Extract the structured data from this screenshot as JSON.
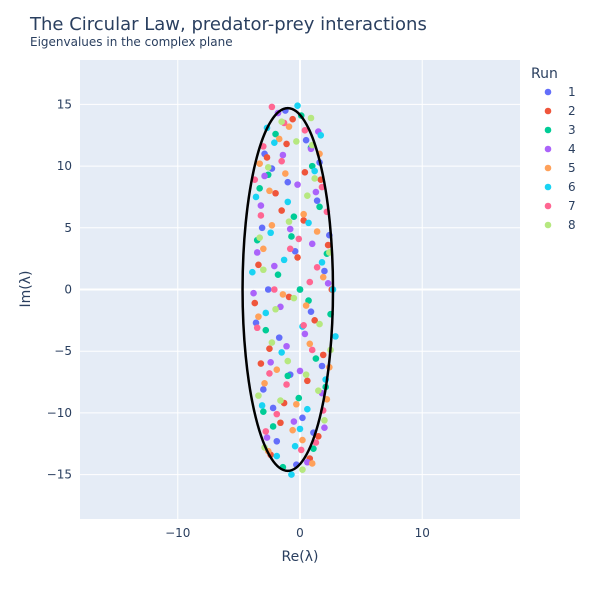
{
  "chart_data": {
    "type": "scatter",
    "title": "The Circular Law, predator-prey interactions",
    "subtitle": "Eigenvalues in the complex plane",
    "xlabel": "Re(λ)",
    "ylabel": "Im(λ)",
    "xlim": [
      -18,
      18
    ],
    "ylim": [
      -18.6,
      18.6
    ],
    "x_ticks": [
      -10,
      0,
      10
    ],
    "x_tick_labels": [
      "−10",
      "0",
      "10"
    ],
    "y_ticks": [
      -15,
      -10,
      -5,
      0,
      5,
      10,
      15
    ],
    "y_tick_labels": [
      "−15",
      "−10",
      "−5",
      "0",
      "5",
      "10",
      "15"
    ],
    "grid": true,
    "legend": {
      "title": "Run",
      "placement": "top-right"
    },
    "plot_bgcolor": "#E5ECF6",
    "ellipse": {
      "center": [
        -1,
        0
      ],
      "semi_axis_re": 3.7,
      "semi_axis_im": 14.7,
      "color": "#000000"
    },
    "series": [
      {
        "name": "1",
        "color": "#636EFA",
        "points": [
          [
            -1.2,
            14.5
          ],
          [
            0.5,
            12.1
          ],
          [
            -2.3,
            9.8
          ],
          [
            1.4,
            7.2
          ],
          [
            -3.1,
            5.0
          ],
          [
            -0.4,
            3.1
          ],
          [
            2.0,
            1.5
          ],
          [
            -2.6,
            0.0
          ],
          [
            0.9,
            -1.8
          ],
          [
            -1.7,
            -3.9
          ],
          [
            1.8,
            -6.2
          ],
          [
            -3.0,
            -8.1
          ],
          [
            0.2,
            -10.4
          ],
          [
            -1.9,
            -12.3
          ],
          [
            -0.3,
            -14.2
          ],
          [
            -2.9,
            11.0
          ],
          [
            1.1,
            -11.6
          ],
          [
            -3.6,
            -2.7
          ],
          [
            2.4,
            4.4
          ],
          [
            -1.0,
            8.7
          ],
          [
            0.0,
            0.0
          ],
          [
            -0.8,
            -6.9
          ],
          [
            1.6,
            10.3
          ],
          [
            -2.2,
            -9.6
          ]
        ]
      },
      {
        "name": "2",
        "color": "#EF553B",
        "points": [
          [
            -0.6,
            13.8
          ],
          [
            -2.7,
            10.7
          ],
          [
            1.7,
            8.9
          ],
          [
            -1.5,
            6.4
          ],
          [
            2.3,
            3.6
          ],
          [
            -3.4,
            2.0
          ],
          [
            -0.9,
            -0.6
          ],
          [
            1.2,
            -2.5
          ],
          [
            -2.5,
            -4.8
          ],
          [
            0.6,
            -7.4
          ],
          [
            -1.3,
            -9.2
          ],
          [
            1.5,
            -11.9
          ],
          [
            -2.4,
            -13.4
          ],
          [
            0.3,
            5.6
          ],
          [
            -3.7,
            -1.1
          ],
          [
            2.6,
            0.0
          ],
          [
            -1.1,
            11.8
          ],
          [
            0.8,
            -13.7
          ],
          [
            -2.0,
            7.8
          ],
          [
            1.9,
            -5.3
          ],
          [
            -0.2,
            2.6
          ],
          [
            -3.2,
            -6.0
          ],
          [
            0.4,
            9.5
          ],
          [
            -1.6,
            -10.8
          ]
        ]
      },
      {
        "name": "3",
        "color": "#00CC96",
        "points": [
          [
            0.1,
            14.1
          ],
          [
            -2.0,
            12.6
          ],
          [
            1.0,
            10.0
          ],
          [
            -3.3,
            8.2
          ],
          [
            -0.5,
            5.9
          ],
          [
            2.2,
            2.9
          ],
          [
            -1.8,
            1.2
          ],
          [
            0.7,
            -0.9
          ],
          [
            -2.8,
            -3.3
          ],
          [
            1.3,
            -5.6
          ],
          [
            -0.1,
            -8.8
          ],
          [
            -2.2,
            -11.1
          ],
          [
            1.1,
            -12.9
          ],
          [
            -1.4,
            -14.4
          ],
          [
            2.5,
            -2.0
          ],
          [
            -3.5,
            4.0
          ],
          [
            0.0,
            0.0
          ],
          [
            -1.0,
            -7.0
          ],
          [
            1.6,
            6.7
          ],
          [
            -2.6,
            9.3
          ],
          [
            0.9,
            11.5
          ],
          [
            -3.0,
            -9.9
          ],
          [
            2.1,
            -7.9
          ],
          [
            -0.7,
            4.3
          ]
        ]
      },
      {
        "name": "4",
        "color": "#AB63FA",
        "points": [
          [
            -1.8,
            14.3
          ],
          [
            0.9,
            11.4
          ],
          [
            -2.9,
            9.2
          ],
          [
            1.3,
            7.9
          ],
          [
            -0.8,
            4.9
          ],
          [
            -3.5,
            3.0
          ],
          [
            2.3,
            0.5
          ],
          [
            -1.6,
            -1.4
          ],
          [
            0.4,
            -3.6
          ],
          [
            -2.4,
            -5.9
          ],
          [
            1.8,
            -8.4
          ],
          [
            -0.5,
            -10.7
          ],
          [
            -2.7,
            -12.0
          ],
          [
            0.6,
            -14.0
          ],
          [
            -3.2,
            6.8
          ],
          [
            1.5,
            12.8
          ],
          [
            -1.1,
            -4.6
          ],
          [
            2.0,
            -11.2
          ],
          [
            -0.2,
            8.5
          ],
          [
            -3.8,
            -0.3
          ],
          [
            0.0,
            -6.6
          ],
          [
            -2.1,
            1.9
          ],
          [
            1.0,
            3.7
          ],
          [
            -1.4,
            10.9
          ]
        ]
      },
      {
        "name": "5",
        "color": "#FFA15A",
        "points": [
          [
            -0.9,
            13.2
          ],
          [
            1.6,
            11.0
          ],
          [
            -2.5,
            8.0
          ],
          [
            0.3,
            6.1
          ],
          [
            -3.0,
            3.3
          ],
          [
            1.9,
            1.0
          ],
          [
            -1.4,
            -0.4
          ],
          [
            -3.4,
            -2.2
          ],
          [
            0.8,
            -4.4
          ],
          [
            -1.9,
            -6.5
          ],
          [
            2.2,
            -8.9
          ],
          [
            -0.6,
            -11.4
          ],
          [
            -2.6,
            -13.1
          ],
          [
            1.0,
            -14.1
          ],
          [
            -1.2,
            9.4
          ],
          [
            0.5,
            -1.3
          ],
          [
            -3.3,
            10.2
          ],
          [
            1.4,
            4.7
          ],
          [
            -0.3,
            -9.3
          ],
          [
            -2.3,
            5.2
          ],
          [
            2.4,
            -6.3
          ],
          [
            -1.7,
            12.2
          ],
          [
            0.2,
            -12.2
          ],
          [
            -2.9,
            -7.6
          ]
        ]
      },
      {
        "name": "6",
        "color": "#19D3F3",
        "points": [
          [
            -0.2,
            14.9
          ],
          [
            -2.1,
            11.9
          ],
          [
            1.2,
            9.6
          ],
          [
            -3.6,
            7.5
          ],
          [
            0.7,
            5.4
          ],
          [
            -1.3,
            2.4
          ],
          [
            2.7,
            0.0
          ],
          [
            -2.8,
            -1.9
          ],
          [
            0.2,
            -3.0
          ],
          [
            -1.5,
            -5.1
          ],
          [
            2.1,
            -7.3
          ],
          [
            -3.1,
            -9.4
          ],
          [
            0.0,
            -11.3
          ],
          [
            -1.9,
            -13.5
          ],
          [
            -0.7,
            -15.0
          ],
          [
            1.8,
            2.2
          ],
          [
            -3.9,
            1.4
          ],
          [
            1.7,
            12.5
          ],
          [
            -2.4,
            4.6
          ],
          [
            0.6,
            -9.7
          ],
          [
            -1.0,
            7.1
          ],
          [
            2.9,
            -3.8
          ],
          [
            -0.4,
            -12.7
          ],
          [
            -2.7,
            13.1
          ]
        ]
      },
      {
        "name": "7",
        "color": "#FF6692",
        "points": [
          [
            -2.3,
            14.8
          ],
          [
            0.4,
            12.9
          ],
          [
            -1.5,
            10.4
          ],
          [
            1.8,
            8.3
          ],
          [
            -3.2,
            6.0
          ],
          [
            -0.1,
            4.1
          ],
          [
            1.4,
            1.8
          ],
          [
            -2.1,
            0.0
          ],
          [
            -3.5,
            -3.1
          ],
          [
            1.0,
            -4.9
          ],
          [
            -1.1,
            -7.7
          ],
          [
            1.9,
            -9.8
          ],
          [
            -2.8,
            -11.5
          ],
          [
            0.1,
            -13.0
          ],
          [
            -1.3,
            13.5
          ],
          [
            -3.7,
            8.9
          ],
          [
            2.2,
            6.3
          ],
          [
            0.3,
            -2.9
          ],
          [
            -2.5,
            -6.8
          ],
          [
            1.3,
            -12.4
          ],
          [
            -0.8,
            3.3
          ],
          [
            -1.9,
            -10.1
          ],
          [
            0.8,
            0.6
          ],
          [
            -3.0,
            11.6
          ]
        ]
      },
      {
        "name": "8",
        "color": "#B6E880",
        "points": [
          [
            -1.5,
            13.6
          ],
          [
            1.0,
            11.7
          ],
          [
            -2.6,
            9.9
          ],
          [
            0.6,
            7.6
          ],
          [
            -0.9,
            5.5
          ],
          [
            2.4,
            3.0
          ],
          [
            -3.0,
            1.6
          ],
          [
            -0.5,
            -0.7
          ],
          [
            1.6,
            -2.8
          ],
          [
            -2.3,
            -4.3
          ],
          [
            0.5,
            -6.9
          ],
          [
            -1.6,
            -9.0
          ],
          [
            2.0,
            -10.6
          ],
          [
            -2.9,
            -12.8
          ],
          [
            0.2,
            -14.6
          ],
          [
            -3.3,
            4.2
          ],
          [
            1.2,
            9.0
          ],
          [
            -1.0,
            -5.8
          ],
          [
            2.5,
            -4.9
          ],
          [
            -0.3,
            12.0
          ],
          [
            -2.0,
            -1.6
          ],
          [
            1.5,
            -8.2
          ],
          [
            -3.4,
            -8.6
          ],
          [
            0.9,
            13.9
          ]
        ]
      }
    ]
  }
}
